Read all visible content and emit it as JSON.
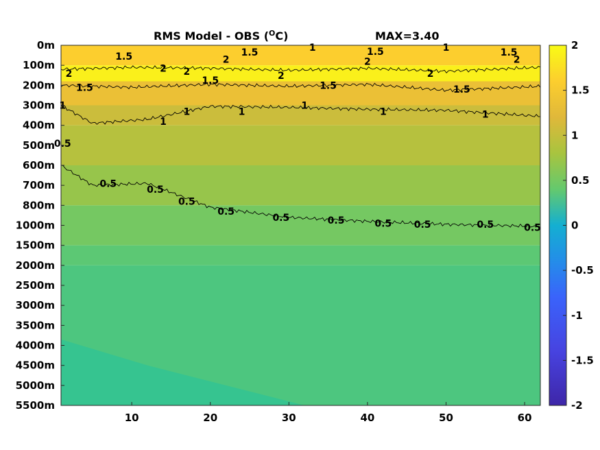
{
  "chart_data": {
    "type": "heatmap",
    "title": "RMS Model - OBS (",
    "title_units_base": "C",
    "title_units_sup": "O",
    "title_units_close": ")",
    "max_label": "MAX=3.40",
    "x_ticks": [
      10,
      20,
      30,
      40,
      50,
      60
    ],
    "xlim": [
      1,
      62
    ],
    "y_tick_labels": [
      "0m",
      "100m",
      "200m",
      "300m",
      "400m",
      "500m",
      "600m",
      "700m",
      "800m",
      "1000m",
      "1500m",
      "2000m",
      "2500m",
      "3000m",
      "3500m",
      "4000m",
      "4500m",
      "5000m",
      "5500m"
    ],
    "colorbar": {
      "ticks": [
        "2",
        "1.5",
        "1",
        "0.5",
        "0",
        "-0.5",
        "-1",
        "-1.5",
        "-2"
      ],
      "range": [
        -2,
        2
      ],
      "colormap": [
        "#3e26a8",
        "#4743e0",
        "#3a63fb",
        "#248de9",
        "#14afd1",
        "#27c29b",
        "#64c96e",
        "#a8c43f",
        "#e0b83a",
        "#fcce2e",
        "#f9fb15"
      ]
    },
    "field_bands": [
      {
        "depth_index_from": 0,
        "depth_index_to": 1,
        "value": 1.6
      },
      {
        "depth_index_from": 1,
        "depth_index_to": 1.8,
        "value": 1.9
      },
      {
        "depth_index_from": 1.8,
        "depth_index_to": 3,
        "value": 1.35
      },
      {
        "depth_index_from": 3,
        "depth_index_to": 4,
        "value": 1.05
      },
      {
        "depth_index_from": 4,
        "depth_index_to": 6,
        "value": 0.9
      },
      {
        "depth_index_from": 6,
        "depth_index_to": 8,
        "value": 0.7
      },
      {
        "depth_index_from": 8,
        "depth_index_to": 10,
        "value": 0.5
      },
      {
        "depth_index_from": 10,
        "depth_index_to": 11,
        "value": 0.35
      },
      {
        "depth_index_from": 11,
        "depth_index_to": 18,
        "value": 0.25
      }
    ],
    "contours": [
      {
        "level": "2",
        "points": [
          [
            1,
            1.2
          ],
          [
            10,
            1.1
          ],
          [
            20,
            1.15
          ],
          [
            30,
            1.25
          ],
          [
            40,
            1.15
          ],
          [
            50,
            1.3
          ],
          [
            62,
            1.1
          ]
        ]
      },
      {
        "level": "1.5",
        "points": [
          [
            1,
            2.0
          ],
          [
            10,
            2.1
          ],
          [
            20,
            1.95
          ],
          [
            30,
            2.05
          ],
          [
            40,
            1.95
          ],
          [
            50,
            2.25
          ],
          [
            62,
            2.05
          ]
        ]
      },
      {
        "level": "1",
        "points": [
          [
            1,
            3.0
          ],
          [
            5,
            3.9
          ],
          [
            12,
            3.7
          ],
          [
            20,
            3.05
          ],
          [
            30,
            3.1
          ],
          [
            40,
            3.2
          ],
          [
            50,
            3.25
          ],
          [
            62,
            3.55
          ]
        ]
      },
      {
        "level": "0.5",
        "points": [
          [
            1,
            6.0
          ],
          [
            5,
            7.0
          ],
          [
            12,
            6.9
          ],
          [
            20,
            8.1
          ],
          [
            30,
            8.6
          ],
          [
            40,
            8.8
          ],
          [
            50,
            8.95
          ],
          [
            62,
            9.05
          ]
        ]
      }
    ],
    "contour_labels": [
      {
        "text": "2",
        "x": 2,
        "y": 1.4
      },
      {
        "text": "1.5",
        "x": 9,
        "y": 0.55
      },
      {
        "text": "2",
        "x": 14,
        "y": 1.15
      },
      {
        "text": "2",
        "x": 17,
        "y": 1.3
      },
      {
        "text": "2",
        "x": 22,
        "y": 0.7
      },
      {
        "text": "1.5",
        "x": 25,
        "y": 0.35
      },
      {
        "text": "1",
        "x": 33,
        "y": 0.1
      },
      {
        "text": "2",
        "x": 29,
        "y": 1.5
      },
      {
        "text": "2",
        "x": 40,
        "y": 0.8
      },
      {
        "text": "1.5",
        "x": 41,
        "y": 0.3
      },
      {
        "text": "1",
        "x": 50,
        "y": 0.1
      },
      {
        "text": "2",
        "x": 48,
        "y": 1.4
      },
      {
        "text": "1.5",
        "x": 58,
        "y": 0.35
      },
      {
        "text": "2",
        "x": 59,
        "y": 0.7
      },
      {
        "text": "1.5",
        "x": 4,
        "y": 2.1
      },
      {
        "text": "1.5",
        "x": 20,
        "y": 1.75
      },
      {
        "text": "1.5",
        "x": 35,
        "y": 2.0
      },
      {
        "text": "1.5",
        "x": 52,
        "y": 2.2
      },
      {
        "text": "1",
        "x": 1.2,
        "y": 3.0
      },
      {
        "text": "1",
        "x": 14,
        "y": 3.8
      },
      {
        "text": "1",
        "x": 17,
        "y": 3.3
      },
      {
        "text": "1",
        "x": 24,
        "y": 3.3
      },
      {
        "text": "1",
        "x": 32,
        "y": 3.0
      },
      {
        "text": "1",
        "x": 42,
        "y": 3.3
      },
      {
        "text": "1",
        "x": 55,
        "y": 3.45
      },
      {
        "text": "0.5",
        "x": 1.2,
        "y": 4.9
      },
      {
        "text": "0.5",
        "x": 7,
        "y": 6.9
      },
      {
        "text": "0.5",
        "x": 13,
        "y": 7.2
      },
      {
        "text": "0.5",
        "x": 17,
        "y": 7.8
      },
      {
        "text": "0.5",
        "x": 22,
        "y": 8.3
      },
      {
        "text": "0.5",
        "x": 29,
        "y": 8.6
      },
      {
        "text": "0.5",
        "x": 36,
        "y": 8.75
      },
      {
        "text": "0.5",
        "x": 42,
        "y": 8.9
      },
      {
        "text": "0.5",
        "x": 47,
        "y": 8.95
      },
      {
        "text": "0.5",
        "x": 55,
        "y": 8.95
      },
      {
        "text": "0.5",
        "x": 61,
        "y": 9.1
      }
    ]
  }
}
